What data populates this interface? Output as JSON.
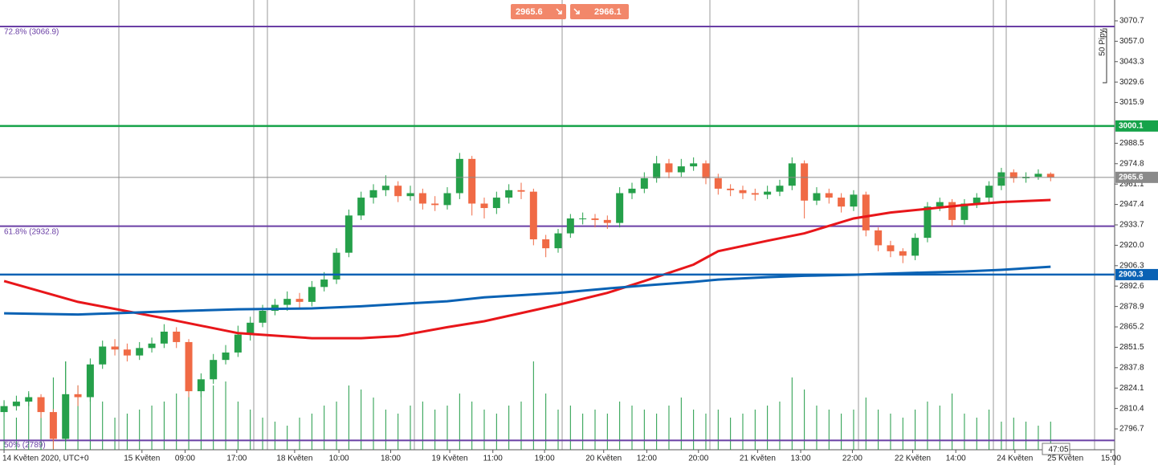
{
  "chart_data": {
    "type": "candlestick",
    "open": [
      2808,
      2812,
      2815,
      2818,
      2808,
      2790,
      2820,
      2818,
      2840,
      2852,
      2850,
      2846,
      2851,
      2854,
      2862,
      2855,
      2822,
      2830,
      2843,
      2848,
      2860,
      2868,
      2876,
      2880,
      2884,
      2882,
      2892,
      2897,
      2915,
      2940,
      2952,
      2957,
      2960,
      2953,
      2955,
      2948,
      2947,
      2955,
      2978,
      2948,
      2945,
      2952,
      2957,
      2956,
      2924,
      2918,
      2928,
      2938,
      2938,
      2937,
      2935,
      2955,
      2958,
      2965,
      2975,
      2969,
      2973,
      2975,
      2965,
      2958,
      2957,
      2955,
      2954,
      2956,
      2960,
      2975,
      2950,
      2955,
      2952,
      2946,
      2954,
      2930,
      2920,
      2916,
      2913,
      2925,
      2946,
      2949,
      2937,
      2948,
      2952,
      2960,
      2969,
      2965,
      2966,
      2968
    ],
    "high": [
      2816,
      2819,
      2822,
      2820,
      2810,
      2842,
      2826,
      2844,
      2856,
      2857,
      2854,
      2855,
      2858,
      2867,
      2865,
      2857,
      2834,
      2847,
      2853,
      2866,
      2872,
      2880,
      2884,
      2889,
      2888,
      2896,
      2902,
      2918,
      2944,
      2956,
      2961,
      2967,
      2963,
      2960,
      2958,
      2953,
      2959,
      2982,
      2980,
      2952,
      2956,
      2961,
      2962,
      2958,
      2927,
      2931,
      2941,
      2942,
      2941,
      2940,
      2959,
      2962,
      2969,
      2980,
      2978,
      2978,
      2979,
      2977,
      2968,
      2961,
      2960,
      2958,
      2960,
      2964,
      2979,
      2977,
      2959,
      2958,
      2955,
      2957,
      2956,
      2932,
      2923,
      2918,
      2928,
      2949,
      2952,
      2951,
      2951,
      2955,
      2963,
      2972,
      2971,
      2969,
      2971,
      2969
    ],
    "low": [
      2805,
      2809,
      2812,
      2804,
      2783,
      2788,
      2812,
      2815,
      2837,
      2846,
      2842,
      2843,
      2848,
      2851,
      2851,
      2818,
      2818,
      2827,
      2840,
      2845,
      2856,
      2865,
      2873,
      2876,
      2878,
      2879,
      2889,
      2894,
      2912,
      2937,
      2948,
      2953,
      2949,
      2950,
      2944,
      2943,
      2944,
      2951,
      2940,
      2938,
      2941,
      2948,
      2951,
      2920,
      2912,
      2915,
      2925,
      2934,
      2932,
      2931,
      2932,
      2951,
      2955,
      2962,
      2965,
      2966,
      2970,
      2961,
      2954,
      2953,
      2951,
      2950,
      2951,
      2953,
      2957,
      2938,
      2947,
      2948,
      2942,
      2943,
      2926,
      2916,
      2912,
      2908,
      2910,
      2922,
      2943,
      2933,
      2934,
      2945,
      2949,
      2957,
      2962,
      2962,
      2964,
      2963
    ],
    "close": [
      2812,
      2815,
      2818,
      2808,
      2790,
      2820,
      2818,
      2840,
      2852,
      2850,
      2846,
      2851,
      2854,
      2862,
      2855,
      2822,
      2830,
      2843,
      2848,
      2860,
      2868,
      2876,
      2880,
      2884,
      2882,
      2892,
      2897,
      2915,
      2940,
      2952,
      2957,
      2960,
      2953,
      2955,
      2948,
      2947,
      2955,
      2978,
      2948,
      2945,
      2952,
      2957,
      2956,
      2924,
      2918,
      2928,
      2938,
      2938,
      2937,
      2935,
      2955,
      2958,
      2965,
      2975,
      2969,
      2973,
      2975,
      2965,
      2958,
      2957,
      2955,
      2954,
      2956,
      2960,
      2975,
      2950,
      2955,
      2952,
      2946,
      2954,
      2930,
      2920,
      2916,
      2913,
      2925,
      2946,
      2949,
      2937,
      2948,
      2952,
      2960,
      2969,
      2965,
      2966,
      2968,
      2965.6
    ],
    "up_color": "#25a04a",
    "down_color": "#f06a45",
    "volume": {
      "color": "#1f9a45",
      "ylim": [
        0,
        120
      ],
      "values": [
        60,
        40,
        70,
        50,
        90,
        110,
        80,
        100,
        60,
        40,
        45,
        50,
        55,
        60,
        70,
        90,
        75,
        80,
        85,
        60,
        50,
        40,
        35,
        30,
        40,
        45,
        55,
        60,
        80,
        75,
        65,
        50,
        45,
        55,
        60,
        50,
        55,
        70,
        60,
        50,
        45,
        55,
        60,
        110,
        70,
        50,
        55,
        45,
        50,
        45,
        60,
        55,
        50,
        45,
        55,
        65,
        50,
        45,
        50,
        40,
        45,
        50,
        55,
        60,
        90,
        75,
        55,
        50,
        45,
        50,
        65,
        50,
        45,
        40,
        50,
        60,
        55,
        70,
        45,
        40,
        50,
        35,
        40,
        35,
        30,
        35
      ]
    },
    "series": [
      {
        "color": "#e8161a",
        "x": [
          0,
          6,
          13,
          19,
          25,
          29,
          32,
          36,
          39,
          45,
          49,
          52,
          56,
          58,
          62,
          65,
          69,
          72,
          75,
          78,
          81,
          85
        ],
        "values": [
          2896,
          2882,
          2871,
          2861,
          2857.6,
          2857.6,
          2859,
          2865,
          2869,
          2880,
          2888,
          2896,
          2907,
          2916,
          2923,
          2928,
          2938,
          2942,
          2944.5,
          2947,
          2949,
          2950.4
        ]
      },
      {
        "color": "#0a62b4",
        "x": [
          0,
          6,
          13,
          19,
          25,
          29,
          32,
          36,
          39,
          45,
          49,
          52,
          56,
          58,
          62,
          65,
          69,
          72,
          75,
          78,
          81,
          85
        ],
        "values": [
          2874.3,
          2873.5,
          2875.5,
          2877,
          2877.6,
          2879,
          2880.5,
          2882.4,
          2885,
          2888,
          2891,
          2893,
          2895.4,
          2897,
          2898.6,
          2899.5,
          2900.2,
          2901,
          2901.8,
          2902.4,
          2903.5,
          2905.6
        ]
      }
    ],
    "ylim": [
      2782.7,
      3084.7
    ],
    "yticks": [
      3070.7,
      {
        "value": 3057,
        "label": "3057.0"
      },
      3043.3,
      3029.6,
      3015.9,
      2988.5,
      2974.8,
      2961.1,
      2947.4,
      2933.7,
      {
        "value": 2920,
        "label": "2920.0"
      },
      2906.3,
      2892.6,
      2878.9,
      2865.2,
      2851.5,
      2837.8,
      2824.1,
      2810.4,
      2796.7
    ],
    "xlim": [
      -0.33,
      90.2
    ],
    "xticks": [
      {
        "value": 0,
        "label": "14 Květen 2020, UTC+0"
      },
      {
        "value": 11.2,
        "label": "15 Květen"
      },
      {
        "value": 14.7,
        "label": "09:00"
      },
      {
        "value": 18.9,
        "label": "17:00"
      },
      {
        "value": 23.6,
        "label": "18 Květen"
      },
      {
        "value": 27.2,
        "label": "10:00"
      },
      {
        "value": 31.4,
        "label": "18:00"
      },
      {
        "value": 36.2,
        "label": "19 Květen"
      },
      {
        "value": 39.7,
        "label": "11:00"
      },
      {
        "value": 43.9,
        "label": "19:00"
      },
      {
        "value": 48.7,
        "label": "20 Květen"
      },
      {
        "value": 52.2,
        "label": "12:00"
      },
      {
        "value": 56.4,
        "label": "20:00"
      },
      {
        "value": 61.2,
        "label": "21 Květen"
      },
      {
        "value": 64.7,
        "label": "13:00"
      },
      {
        "value": 68.9,
        "label": "22:00"
      },
      {
        "value": 73.8,
        "label": "22 Květen"
      },
      {
        "value": 77.3,
        "label": "14:00"
      },
      {
        "value": 82.1,
        "label": "24 Květen"
      },
      {
        "value": 86.2,
        "label": "25 Květen"
      },
      {
        "value": 89.9,
        "label": "15:00"
      }
    ],
    "levels": [
      {
        "value": 3066.9,
        "label": "72.8% (3066.9)",
        "color": "#6a3fa5"
      },
      {
        "value": 2932.8,
        "label": "61.8% (2932.8)",
        "color": "#6a3fa5"
      },
      {
        "value": 2789,
        "label": "50% (2789)",
        "color": "#6a3fa5"
      }
    ],
    "price_lines": [
      {
        "value": 3000.1,
        "color": "#16a34a"
      },
      {
        "value": 2965.6,
        "color": "#8a8a8a"
      },
      {
        "value": 2900.3,
        "color": "#0a62b4"
      }
    ]
  },
  "order_buttons": {
    "sell": 2965.6,
    "buy": 2966.1
  },
  "range_label": "50 Pipy",
  "countdown": "47:05"
}
